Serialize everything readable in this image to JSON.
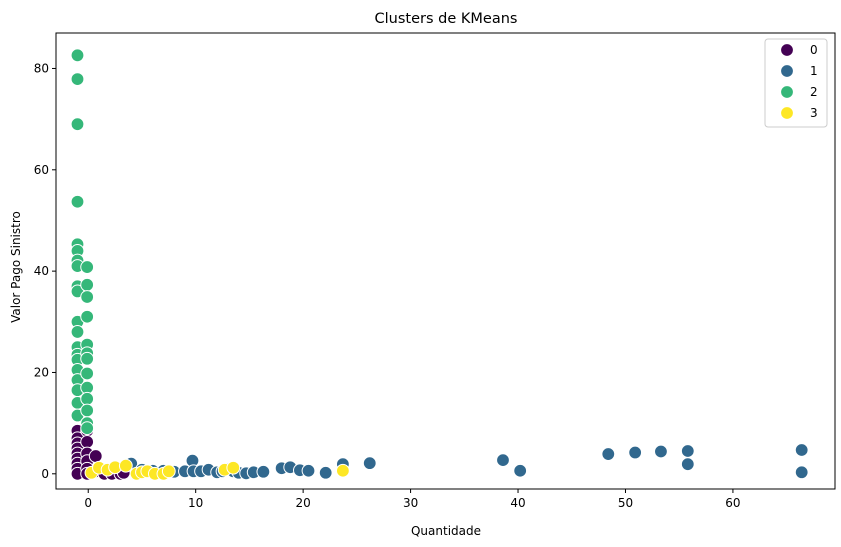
{
  "chart_data": {
    "type": "scatter",
    "title": "Clusters de KMeans",
    "xlabel": "Quantidade",
    "ylabel": "Valor Pago Sinistro",
    "xlim": [
      -3,
      69.5
    ],
    "ylim": [
      -3,
      87
    ],
    "xticks": [
      0,
      10,
      20,
      30,
      40,
      50,
      60
    ],
    "yticks": [
      0,
      20,
      40,
      60,
      80
    ],
    "grid": false,
    "legend_placement": "top-right",
    "series": [
      {
        "name": "0",
        "color": "#440154",
        "points": [
          [
            -1,
            8.5
          ],
          [
            -1,
            7
          ],
          [
            -1,
            6
          ],
          [
            -1,
            5
          ],
          [
            -1,
            4
          ],
          [
            -1,
            3
          ],
          [
            -1,
            2
          ],
          [
            -1,
            1
          ],
          [
            -1,
            0
          ],
          [
            -0.1,
            8.5
          ],
          [
            -0.1,
            6.3
          ],
          [
            -0.1,
            4
          ],
          [
            -0.1,
            2.5
          ],
          [
            -0.1,
            1
          ],
          [
            -0.1,
            0
          ],
          [
            0.7,
            3.5
          ],
          [
            0.7,
            0.5
          ],
          [
            1.5,
            0
          ],
          [
            2.2,
            0
          ],
          [
            3.0,
            0
          ],
          [
            3.3,
            0.2
          ]
        ]
      },
      {
        "name": "1",
        "color": "#31688e",
        "points": [
          [
            4,
            2
          ],
          [
            5,
            0.8
          ],
          [
            6,
            0.6
          ],
          [
            7,
            0.6
          ],
          [
            8,
            0.4
          ],
          [
            9,
            0.5
          ],
          [
            9.7,
            2.6
          ],
          [
            9.8,
            0.5
          ],
          [
            10.5,
            0.5
          ],
          [
            11.2,
            0.8
          ],
          [
            12,
            0.3
          ],
          [
            12.5,
            0.5
          ],
          [
            13,
            0.9
          ],
          [
            13.5,
            0.5
          ],
          [
            14,
            0.2
          ],
          [
            14.7,
            0.1
          ],
          [
            15.4,
            0.3
          ],
          [
            16.3,
            0.4
          ],
          [
            18,
            1.1
          ],
          [
            18.8,
            1.3
          ],
          [
            19.7,
            0.7
          ],
          [
            20.5,
            0.6
          ],
          [
            22.1,
            0.2
          ],
          [
            23.7,
            1.9
          ],
          [
            26.2,
            2.1
          ],
          [
            38.6,
            2.7
          ],
          [
            40.2,
            0.6
          ],
          [
            48.4,
            3.9
          ],
          [
            50.9,
            4.2
          ],
          [
            53.3,
            4.4
          ],
          [
            55.8,
            4.5
          ],
          [
            55.8,
            1.9
          ],
          [
            66.4,
            4.7
          ],
          [
            66.4,
            0.3
          ]
        ]
      },
      {
        "name": "2",
        "color": "#35b779",
        "points": [
          [
            -1,
            82.6
          ],
          [
            -1,
            77.9
          ],
          [
            -1,
            69
          ],
          [
            -1,
            53.7
          ],
          [
            -1,
            45.3
          ],
          [
            -1,
            44
          ],
          [
            -1,
            42.1
          ],
          [
            -1,
            41
          ],
          [
            -1,
            37
          ],
          [
            -1,
            36
          ],
          [
            -1,
            30
          ],
          [
            -1,
            28
          ],
          [
            -1,
            25
          ],
          [
            -1,
            23.5
          ],
          [
            -1,
            22.5
          ],
          [
            -1,
            20.5
          ],
          [
            -1,
            18.5
          ],
          [
            -1,
            16.5
          ],
          [
            -1,
            14
          ],
          [
            -1,
            11.5
          ],
          [
            -0.1,
            40.8
          ],
          [
            -0.1,
            37.3
          ],
          [
            -0.1,
            34.9
          ],
          [
            -0.1,
            31
          ],
          [
            -0.1,
            25.5
          ],
          [
            -0.1,
            23.8
          ],
          [
            -0.1,
            22.7
          ],
          [
            -0.1,
            19.8
          ],
          [
            -0.1,
            17
          ],
          [
            -0.1,
            14.8
          ],
          [
            -0.1,
            12.5
          ],
          [
            -0.1,
            10
          ],
          [
            -0.1,
            9
          ]
        ]
      },
      {
        "name": "3",
        "color": "#fde725",
        "points": [
          [
            0.3,
            0.2
          ],
          [
            1,
            1.2
          ],
          [
            1.8,
            0.8
          ],
          [
            2.5,
            1.3
          ],
          [
            3.5,
            1.6
          ],
          [
            4.5,
            0
          ],
          [
            5.0,
            0.3
          ],
          [
            5.5,
            0.5
          ],
          [
            6.2,
            0
          ],
          [
            7,
            0
          ],
          [
            7.5,
            0.5
          ],
          [
            12.7,
            0.8
          ],
          [
            13.5,
            1.2
          ],
          [
            23.7,
            0.6
          ]
        ]
      }
    ]
  }
}
